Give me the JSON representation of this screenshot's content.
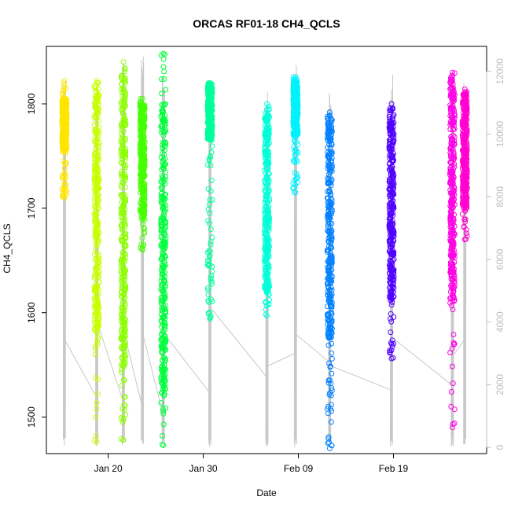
{
  "chart_data": {
    "type": "scatter",
    "title": "ORCAS RF01-18 CH4_QCLS",
    "xlabel": "Date",
    "ylabel": "CH4_QCLS",
    "x_ticks": [
      "Jan 20",
      "Jan 30",
      "Feb 09",
      "Feb 19"
    ],
    "x_tick_days": [
      20,
      30,
      40,
      50
    ],
    "xlim_days": [
      13.5,
      59.8
    ],
    "ylim_left": [
      1465,
      1855
    ],
    "y_ticks_left": [
      "1500",
      "1600",
      "1700",
      "1800"
    ],
    "y_tick_values_left": [
      1500,
      1600,
      1700,
      1800
    ],
    "ylim_right": [
      -200,
      12800
    ],
    "y_ticks_right": [
      "0",
      "2000",
      "4000",
      "6000",
      "8000",
      "10000",
      "12000"
    ],
    "y_tick_values_right": [
      0,
      2000,
      4000,
      6000,
      8000,
      10000,
      12000
    ],
    "grid": false,
    "legend": "none",
    "altitude_line_color": "#c8c8c8",
    "flights": [
      {
        "day": 15.4,
        "ymin": 1710,
        "ymax": 1822,
        "dense_min": 1755,
        "dense_max": 1805,
        "color": "#ffe500",
        "alt_max": 12000
      },
      {
        "day": 18.8,
        "ymin": 1476,
        "ymax": 1822,
        "dense_min": 1580,
        "dense_max": 1815,
        "color": "#c8ff00",
        "alt_max": 12100
      },
      {
        "day": 21.6,
        "ymin": 1478,
        "ymax": 1840,
        "dense_min": 1545,
        "dense_max": 1830,
        "color": "#8cff00",
        "alt_max": 12600
      },
      {
        "day": 23.6,
        "ymin": 1660,
        "ymax": 1805,
        "dense_min": 1690,
        "dense_max": 1800,
        "color": "#45ff00",
        "alt_max": 12500
      },
      {
        "day": 25.8,
        "ymin": 1473,
        "ymax": 1848,
        "dense_min": 1520,
        "dense_max": 1800,
        "color": "#00ff3c",
        "alt_max": 12200
      },
      {
        "day": 30.7,
        "ymin": 1594,
        "ymax": 1820,
        "dense_min": 1765,
        "dense_max": 1820,
        "color": "#00ff9c",
        "alt_max": 12300
      },
      {
        "day": 36.7,
        "ymin": 1597,
        "ymax": 1800,
        "dense_min": 1620,
        "dense_max": 1795,
        "color": "#00ffd8",
        "alt_max": 11700
      },
      {
        "day": 39.7,
        "ymin": 1715,
        "ymax": 1826,
        "dense_min": 1770,
        "dense_max": 1822,
        "color": "#00f2ff",
        "alt_max": 12200
      },
      {
        "day": 43.3,
        "ymin": 1470,
        "ymax": 1792,
        "dense_min": 1575,
        "dense_max": 1790,
        "color": "#0080ff",
        "alt_max": 11500
      },
      {
        "day": 49.8,
        "ymin": 1556,
        "ymax": 1800,
        "dense_min": 1610,
        "dense_max": 1798,
        "color": "#5000ff",
        "alt_max": 11900
      },
      {
        "day": 56.2,
        "ymin": 1490,
        "ymax": 1830,
        "dense_min": 1610,
        "dense_max": 1828,
        "color": "#ff00e4",
        "alt_max": 12100
      },
      {
        "day": 57.5,
        "ymin": 1670,
        "ymax": 1814,
        "dense_min": 1700,
        "dense_max": 1810,
        "color": "#ff00d0",
        "alt_max": 12000
      }
    ]
  }
}
